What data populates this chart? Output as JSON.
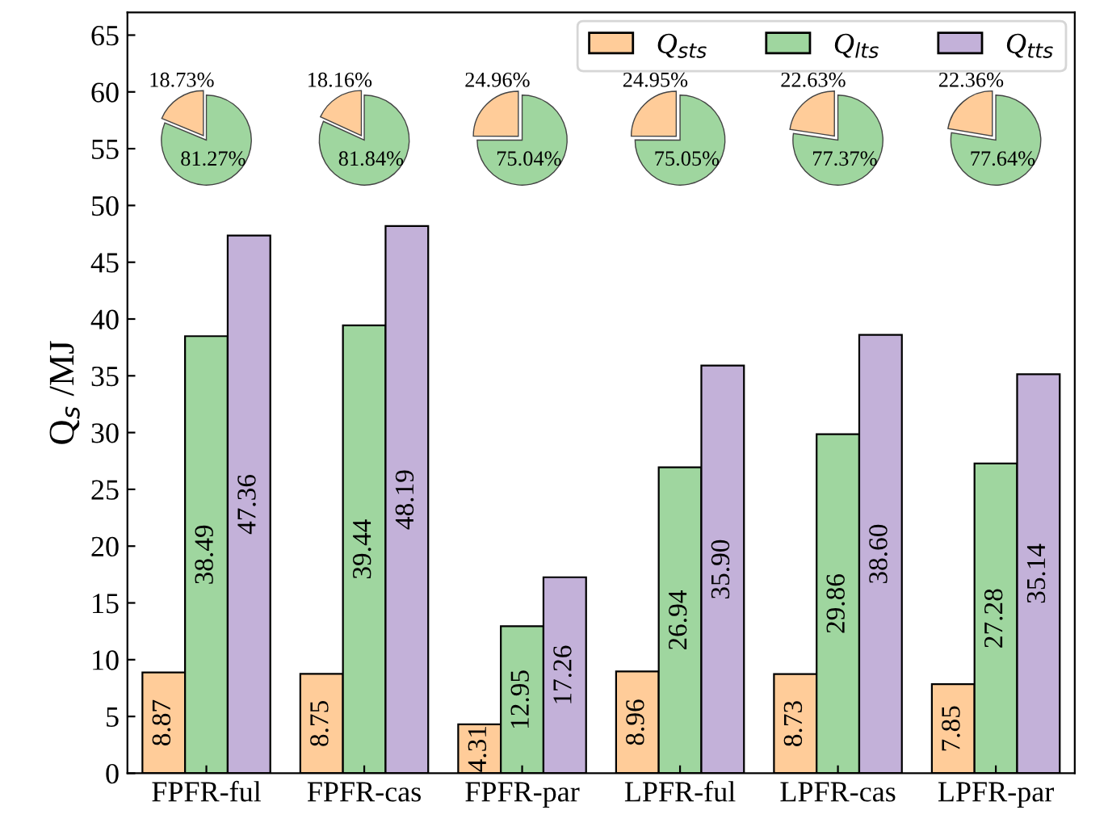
{
  "chart_data": [
    {
      "type": "bar",
      "ylabel": "Q$_{s}$ /MJ",
      "categories": [
        "FPFR-ful",
        "FPFR-cas",
        "FPFR-par",
        "LPFR-ful",
        "LPFR-cas",
        "LPFR-par"
      ],
      "series": [
        {
          "name": "Q$_{sts}$",
          "color": "#ffcc99",
          "values": [
            8.87,
            8.75,
            4.31,
            8.96,
            8.73,
            7.85
          ]
        },
        {
          "name": "Q$_{lts}$",
          "color": "#9fd69f",
          "values": [
            38.49,
            39.44,
            12.95,
            26.94,
            29.86,
            27.28
          ]
        },
        {
          "name": "Q$_{tts}$",
          "color": "#c3b1d9",
          "values": [
            47.36,
            48.19,
            17.26,
            35.9,
            38.6,
            35.14
          ],
          "value_labels": [
            "47.36",
            "48.19",
            "17.26",
            "35.90",
            "38.60",
            "35.14"
          ]
        }
      ],
      "ylim": [
        0,
        67
      ],
      "yticks": [
        0,
        5,
        10,
        15,
        20,
        25,
        30,
        35,
        40,
        45,
        50,
        55,
        60,
        65
      ],
      "data_labels": true,
      "grid": false,
      "legend": "top right"
    },
    {
      "type": "pie",
      "categories": [
        null,
        null
      ],
      "values": [
        18.73,
        81.27
      ],
      "colors": [
        "#ffcc99",
        "#9fd69f"
      ],
      "value_labels": [
        "18.73%",
        "81.27%"
      ]
    },
    {
      "type": "pie",
      "categories": [
        null,
        null
      ],
      "values": [
        18.16,
        81.84
      ],
      "colors": [
        "#ffcc99",
        "#9fd69f"
      ],
      "value_labels": [
        "18.16%",
        "81.84%"
      ]
    },
    {
      "type": "pie",
      "categories": [
        null,
        null
      ],
      "values": [
        24.96,
        75.04
      ],
      "colors": [
        "#ffcc99",
        "#9fd69f"
      ],
      "value_labels": [
        "24.96%",
        "75.04%"
      ]
    },
    {
      "type": "pie",
      "categories": [
        null,
        null
      ],
      "values": [
        24.95,
        75.05
      ],
      "colors": [
        "#ffcc99",
        "#9fd69f"
      ],
      "value_labels": [
        "24.95%",
        "75.05%"
      ]
    },
    {
      "type": "pie",
      "categories": [
        null,
        null
      ],
      "values": [
        22.63,
        77.37
      ],
      "colors": [
        "#ffcc99",
        "#9fd69f"
      ],
      "value_labels": [
        "22.63%",
        "77.37%"
      ]
    },
    {
      "type": "pie",
      "categories": [
        null,
        null
      ],
      "values": [
        22.36,
        77.64
      ],
      "colors": [
        "#ffcc99",
        "#9fd69f"
      ],
      "value_labels": [
        "22.36%",
        "77.64%"
      ]
    }
  ]
}
